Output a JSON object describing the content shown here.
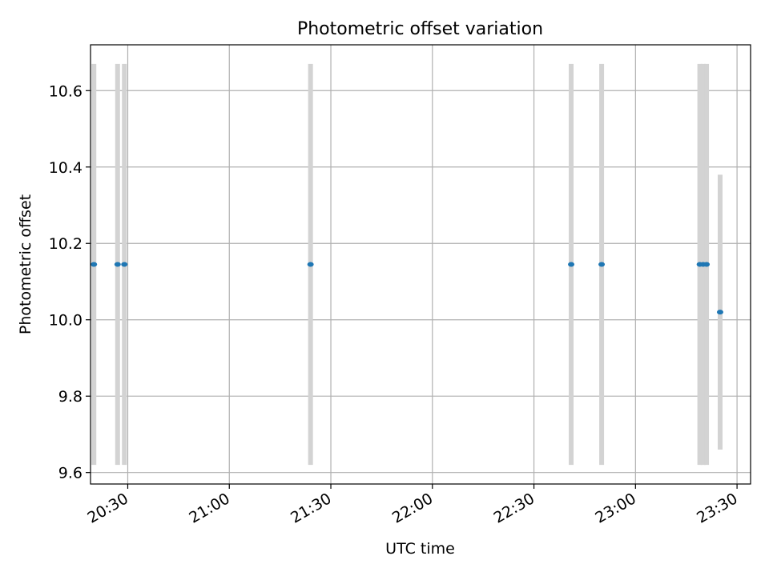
{
  "chart_data": {
    "type": "scatter",
    "title": "Photometric offset variation",
    "xlabel": "UTC time",
    "ylabel": "Photometric offset",
    "x_axis": {
      "kind": "time",
      "range": [
        "20:19",
        "23:34"
      ],
      "ticks": [
        "20:30",
        "21:00",
        "21:30",
        "22:00",
        "22:30",
        "23:00",
        "23:30"
      ]
    },
    "y_axis": {
      "range": [
        9.57,
        10.72
      ],
      "ticks": [
        9.6,
        9.8,
        10.0,
        10.2,
        10.4,
        10.6
      ],
      "tick_labels": [
        "9.6",
        "9.8",
        "10.0",
        "10.2",
        "10.4",
        "10.6"
      ]
    },
    "grid": true,
    "series": [
      {
        "color": "#1f77b4",
        "errorbar_color": "#d3d3d3",
        "points": [
          {
            "x": "20:20",
            "y": 10.145,
            "err_low": 9.62,
            "err_high": 10.67
          },
          {
            "x": "20:27",
            "y": 10.145,
            "err_low": 9.62,
            "err_high": 10.67
          },
          {
            "x": "20:29",
            "y": 10.145,
            "err_low": 9.62,
            "err_high": 10.67
          },
          {
            "x": "21:24",
            "y": 10.145,
            "err_low": 9.62,
            "err_high": 10.67
          },
          {
            "x": "22:41",
            "y": 10.145,
            "err_low": 9.62,
            "err_high": 10.67
          },
          {
            "x": "22:50",
            "y": 10.145,
            "err_low": 9.62,
            "err_high": 10.67
          },
          {
            "x": "23:19",
            "y": 10.145,
            "err_low": 9.62,
            "err_high": 10.67
          },
          {
            "x": "23:20",
            "y": 10.145,
            "err_low": 9.62,
            "err_high": 10.67
          },
          {
            "x": "23:21",
            "y": 10.145,
            "err_low": 9.62,
            "err_high": 10.67
          },
          {
            "x": "23:25",
            "y": 10.02,
            "err_low": 9.66,
            "err_high": 10.38
          }
        ]
      }
    ]
  }
}
